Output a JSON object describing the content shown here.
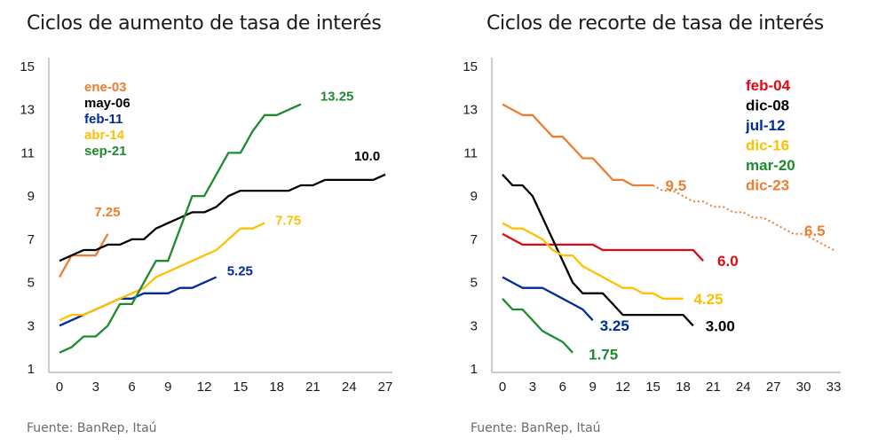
{
  "titles": {
    "left": "Ciclos de aumento de tasa de interés",
    "right": "Ciclos de recorte de tasa de interés"
  },
  "sources": {
    "left": "Fuente: BanRep,  Itaú",
    "right": "Fuente: BanRep,  Itaú"
  },
  "chart_data": [
    {
      "type": "line",
      "title": "Ciclos de aumento de tasa de interés",
      "xlim": [
        0,
        27
      ],
      "ylim": [
        1,
        15
      ],
      "x_ticks": [
        "0",
        "3",
        "6",
        "9",
        "12",
        "15",
        "18",
        "21",
        "24",
        "27"
      ],
      "y_ticks": [
        "15",
        "13",
        "11",
        "9",
        "7",
        "5",
        "3",
        "1"
      ],
      "series": [
        {
          "name": "ene-03",
          "color": "#ed7d31",
          "end_label": "7.25",
          "x": [
            0,
            1,
            2,
            3,
            4
          ],
          "y": [
            5.25,
            6.25,
            6.25,
            6.25,
            7.25
          ]
        },
        {
          "name": "may-06",
          "color": "#000000",
          "end_label": "10.0",
          "x": [
            0,
            1,
            2,
            3,
            4,
            5,
            6,
            7,
            8,
            9,
            10,
            11,
            12,
            13,
            14,
            15,
            16,
            17,
            18,
            19,
            20,
            21,
            22,
            23,
            24,
            25,
            26,
            27
          ],
          "y": [
            6.0,
            6.25,
            6.5,
            6.5,
            6.75,
            6.75,
            7.0,
            7.0,
            7.5,
            7.75,
            8.0,
            8.25,
            8.25,
            8.5,
            9.0,
            9.25,
            9.25,
            9.25,
            9.25,
            9.25,
            9.5,
            9.5,
            9.75,
            9.75,
            9.75,
            9.75,
            9.75,
            10.0
          ]
        },
        {
          "name": "feb-11",
          "color": "#002b9a",
          "end_label": "5.25",
          "x": [
            0,
            1,
            2,
            3,
            4,
            5,
            6,
            7,
            8,
            9,
            10,
            11,
            12,
            13
          ],
          "y": [
            3.0,
            3.25,
            3.5,
            3.75,
            4.0,
            4.25,
            4.25,
            4.5,
            4.5,
            4.5,
            4.75,
            4.75,
            5.0,
            5.25
          ]
        },
        {
          "name": "abr-14",
          "color": "#ffc000",
          "end_label": "7.75",
          "x": [
            0,
            1,
            2,
            3,
            4,
            5,
            6,
            7,
            8,
            9,
            10,
            11,
            12,
            13,
            14,
            15,
            16,
            17
          ],
          "y": [
            3.25,
            3.5,
            3.5,
            3.75,
            4.0,
            4.25,
            4.5,
            4.75,
            5.25,
            5.5,
            5.75,
            6.0,
            6.25,
            6.5,
            7.0,
            7.5,
            7.5,
            7.75
          ]
        },
        {
          "name": "sep-21",
          "color": "#1e8a2e",
          "end_label": "13.25",
          "x": [
            0,
            1,
            2,
            3,
            4,
            5,
            6,
            7,
            8,
            9,
            10,
            11,
            12,
            13,
            14,
            15,
            16,
            17,
            18,
            19,
            20
          ],
          "y": [
            1.75,
            2.0,
            2.5,
            2.5,
            3.0,
            4.0,
            4.0,
            5.0,
            6.0,
            6.0,
            7.5,
            9.0,
            9.0,
            10.0,
            11.0,
            11.0,
            12.0,
            12.75,
            12.75,
            13.0,
            13.25
          ]
        }
      ]
    },
    {
      "type": "line",
      "title": "Ciclos de recorte de tasa de interés",
      "xlim": [
        0,
        33
      ],
      "ylim": [
        1,
        15
      ],
      "x_ticks": [
        "0",
        "3",
        "6",
        "9",
        "12",
        "15",
        "18",
        "21",
        "24",
        "27",
        "30",
        "33"
      ],
      "y_ticks": [
        "15",
        "13",
        "11",
        "9",
        "7",
        "5",
        "3",
        "1"
      ],
      "series": [
        {
          "name": "feb-04",
          "color": "#e30613",
          "end_label": "6.0",
          "x": [
            0,
            1,
            2,
            3,
            4,
            5,
            6,
            7,
            8,
            9,
            10,
            11,
            12,
            13,
            14,
            15,
            16,
            17,
            18,
            19,
            20
          ],
          "y": [
            7.25,
            7.0,
            6.75,
            6.75,
            6.75,
            6.75,
            6.75,
            6.75,
            6.75,
            6.75,
            6.5,
            6.5,
            6.5,
            6.5,
            6.5,
            6.5,
            6.5,
            6.5,
            6.5,
            6.5,
            6.0
          ]
        },
        {
          "name": "dic-08",
          "color": "#000000",
          "end_label": "3.00",
          "x": [
            0,
            1,
            2,
            3,
            4,
            5,
            6,
            7,
            8,
            9,
            10,
            11,
            12,
            13,
            14,
            15,
            16,
            17,
            18,
            19
          ],
          "y": [
            10.0,
            9.5,
            9.5,
            9.0,
            8.0,
            7.0,
            6.0,
            5.0,
            4.5,
            4.5,
            4.5,
            4.0,
            3.5,
            3.5,
            3.5,
            3.5,
            3.5,
            3.5,
            3.5,
            3.0
          ]
        },
        {
          "name": "jul-12",
          "color": "#002b9a",
          "end_label": "3.25",
          "x": [
            0,
            1,
            2,
            3,
            4,
            5,
            6,
            7,
            8,
            9
          ],
          "y": [
            5.25,
            5.0,
            4.75,
            4.75,
            4.75,
            4.5,
            4.25,
            4.0,
            3.75,
            3.25
          ]
        },
        {
          "name": "dic-16",
          "color": "#ffc000",
          "end_label": "4.25",
          "x": [
            0,
            1,
            2,
            3,
            4,
            5,
            6,
            7,
            8,
            9,
            10,
            11,
            12,
            13,
            14,
            15,
            16,
            17,
            18
          ],
          "y": [
            7.75,
            7.5,
            7.5,
            7.25,
            7.0,
            6.5,
            6.25,
            6.25,
            5.75,
            5.5,
            5.25,
            5.0,
            4.75,
            4.75,
            4.5,
            4.5,
            4.25,
            4.25,
            4.25
          ]
        },
        {
          "name": "mar-20",
          "color": "#1e8a2e",
          "end_label": "1.75",
          "x": [
            0,
            1,
            2,
            3,
            4,
            5,
            6,
            7
          ],
          "y": [
            4.25,
            3.75,
            3.75,
            3.25,
            2.75,
            2.5,
            2.25,
            1.75
          ]
        },
        {
          "name": "dic-23",
          "color": "#ed7d31",
          "end_label": "9.5",
          "x": [
            0,
            1,
            2,
            3,
            4,
            5,
            6,
            7,
            8,
            9,
            10,
            11,
            12,
            13,
            14,
            15
          ],
          "y": [
            13.25,
            13.0,
            12.75,
            12.75,
            12.25,
            11.75,
            11.75,
            11.25,
            10.75,
            10.75,
            10.25,
            9.75,
            9.75,
            9.5,
            9.5,
            9.5
          ]
        },
        {
          "name": "dic-23",
          "color": "#ed7d31",
          "dashed": true,
          "end_label": "6.5",
          "x": [
            15,
            16,
            17,
            18,
            19,
            20,
            21,
            22,
            23,
            24,
            25,
            26,
            27,
            28,
            29,
            30,
            31,
            32,
            33
          ],
          "y": [
            9.5,
            9.25,
            9.25,
            9.0,
            8.75,
            8.75,
            8.5,
            8.5,
            8.25,
            8.25,
            8.0,
            8.0,
            7.75,
            7.5,
            7.25,
            7.25,
            7.0,
            6.75,
            6.5
          ]
        }
      ]
    }
  ]
}
